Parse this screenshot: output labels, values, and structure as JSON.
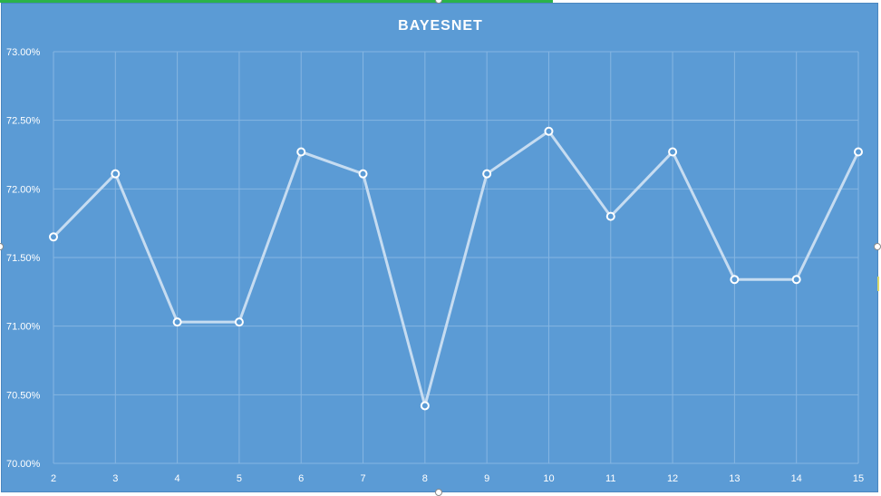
{
  "colors": {
    "background": "#5b9bd5",
    "grid": "#86b6e2",
    "line": "#c6dcf1",
    "marker_fill": "#5b9bd5",
    "marker_stroke": "#ffffff",
    "text": "#ffffff"
  },
  "chart_data": {
    "type": "line",
    "title": "BAYESNET",
    "xlabel": "",
    "ylabel": "",
    "x": [
      2,
      3,
      4,
      5,
      6,
      7,
      8,
      9,
      10,
      11,
      12,
      13,
      14,
      15
    ],
    "x_tick_labels": [
      "2",
      "3",
      "4",
      "5",
      "6",
      "7",
      "8",
      "9",
      "10",
      "11",
      "12",
      "13",
      "14",
      "15"
    ],
    "y_tick_values": [
      70.0,
      70.5,
      71.0,
      71.5,
      72.0,
      72.5,
      73.0
    ],
    "y_tick_labels": [
      "70.00%",
      "70.50%",
      "71.00%",
      "71.50%",
      "72.00%",
      "72.50%",
      "73.00%"
    ],
    "ylim": [
      70.0,
      73.0
    ],
    "grid": true,
    "legend": "none",
    "series": [
      {
        "values": [
          71.65,
          72.11,
          71.03,
          71.03,
          72.27,
          72.11,
          70.42,
          72.11,
          72.42,
          71.8,
          72.27,
          71.34,
          71.34,
          72.27
        ]
      }
    ]
  }
}
